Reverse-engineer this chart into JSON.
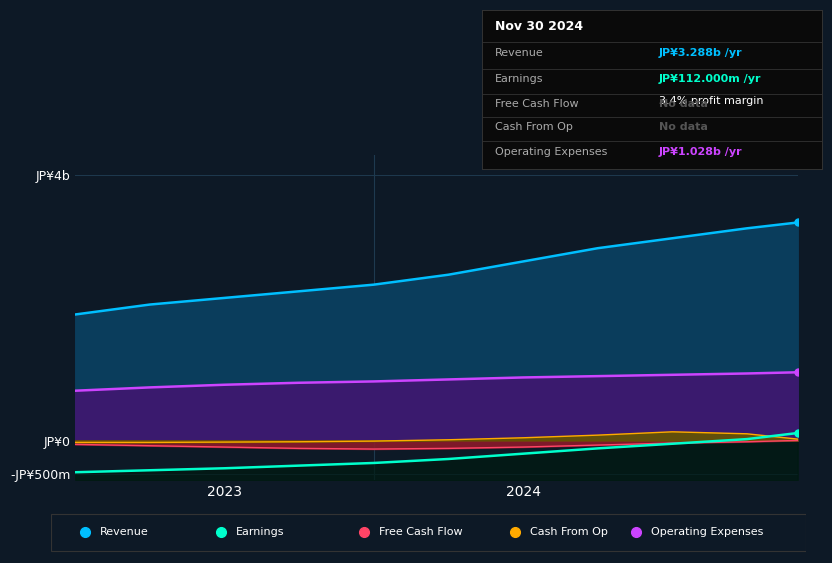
{
  "background_color": "#0d1926",
  "plot_bg_color": "#0d1926",
  "grid_color": "#1e3a4f",
  "x_ticks": [
    2023,
    2024
  ],
  "x_range": [
    2022.5,
    2024.92
  ],
  "y_range": [
    -600,
    4300
  ],
  "y_ticks_labels": [
    "JP¥4b",
    "JP¥0",
    "-JP¥500m"
  ],
  "y_ticks_values": [
    4000,
    0,
    -500
  ],
  "divider_x": 2023.5,
  "revenue": {
    "label": "Revenue",
    "color": "#00bfff",
    "fill_color": "#0a3d5c",
    "x": [
      2022.5,
      2022.75,
      2023.0,
      2023.25,
      2023.5,
      2023.75,
      2024.0,
      2024.25,
      2024.5,
      2024.75,
      2024.92
    ],
    "y": [
      1900,
      2050,
      2150,
      2250,
      2350,
      2500,
      2700,
      2900,
      3050,
      3200,
      3288
    ]
  },
  "op_expenses": {
    "label": "Operating Expenses",
    "color": "#cc44ff",
    "fill_color": "#3a1a6e",
    "x": [
      2022.5,
      2022.75,
      2023.0,
      2023.25,
      2023.5,
      2023.75,
      2024.0,
      2024.25,
      2024.5,
      2024.75,
      2024.92
    ],
    "y": [
      750,
      800,
      840,
      870,
      890,
      920,
      950,
      970,
      990,
      1010,
      1028
    ]
  },
  "free_cash_flow": {
    "label": "Free Cash Flow",
    "color": "#ff4466",
    "fill_color": "#8b1a2a",
    "x": [
      2022.5,
      2022.75,
      2023.0,
      2023.25,
      2023.5,
      2023.75,
      2024.0,
      2024.25,
      2024.5,
      2024.75,
      2024.92
    ],
    "y": [
      -60,
      -80,
      -100,
      -120,
      -130,
      -120,
      -100,
      -70,
      -40,
      -20,
      0
    ]
  },
  "cash_from_op": {
    "label": "Cash From Op",
    "color": "#ffaa00",
    "fill_color": "#665500",
    "x": [
      2022.5,
      2022.75,
      2023.0,
      2023.25,
      2023.5,
      2023.75,
      2024.0,
      2024.25,
      2024.5,
      2024.75,
      2024.92
    ],
    "y": [
      -30,
      -30,
      -25,
      -20,
      -10,
      10,
      40,
      80,
      130,
      100,
      20
    ]
  },
  "earnings": {
    "label": "Earnings",
    "color": "#00ffcc",
    "fill_color": "#001a10",
    "x": [
      2022.5,
      2022.75,
      2023.0,
      2023.25,
      2023.5,
      2023.75,
      2024.0,
      2024.25,
      2024.5,
      2024.75,
      2024.92
    ],
    "y": [
      -480,
      -450,
      -420,
      -380,
      -340,
      -280,
      -200,
      -120,
      -50,
      20,
      112
    ]
  },
  "info_box": {
    "date": "Nov 30 2024",
    "rows": [
      {
        "label": "Revenue",
        "value": "JP¥3.288b /yr",
        "value_color": "#00bfff",
        "subvalue": null
      },
      {
        "label": "Earnings",
        "value": "JP¥112.000m /yr",
        "value_color": "#00ffcc",
        "subvalue": "3.4% profit margin"
      },
      {
        "label": "Free Cash Flow",
        "value": "No data",
        "value_color": "#555555",
        "subvalue": null
      },
      {
        "label": "Cash From Op",
        "value": "No data",
        "value_color": "#555555",
        "subvalue": null
      },
      {
        "label": "Operating Expenses",
        "value": "JP¥1.028b /yr",
        "value_color": "#cc44ff",
        "subvalue": null
      }
    ]
  },
  "legend": [
    {
      "label": "Revenue",
      "color": "#00bfff"
    },
    {
      "label": "Earnings",
      "color": "#00ffcc"
    },
    {
      "label": "Free Cash Flow",
      "color": "#ff4466"
    },
    {
      "label": "Cash From Op",
      "color": "#ffaa00"
    },
    {
      "label": "Operating Expenses",
      "color": "#cc44ff"
    }
  ]
}
